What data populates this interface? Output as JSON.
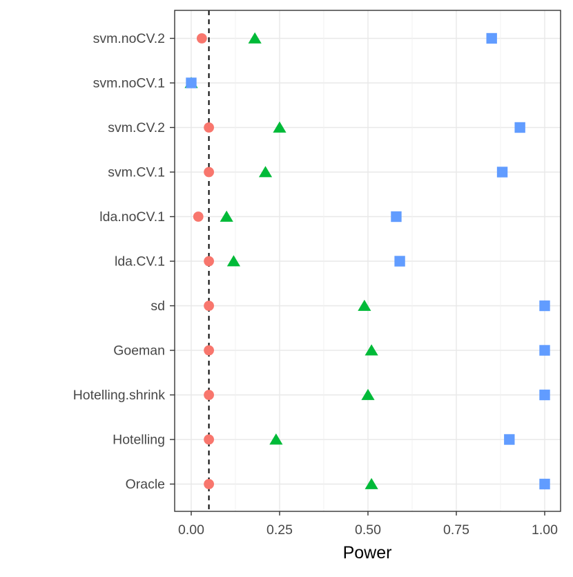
{
  "chart_data": {
    "type": "scatter",
    "subtype": "horizontal-dot-plot",
    "title": "",
    "xlabel": "Power",
    "ylabel": "",
    "xlim": [
      -0.047,
      1.045
    ],
    "x_ticks": [
      0.0,
      0.25,
      0.5,
      0.75,
      1.0
    ],
    "x_tick_labels": [
      "0.00",
      "0.25",
      "0.50",
      "0.75",
      "1.00"
    ],
    "x_minor_ticks": [
      0.125,
      0.375,
      0.625,
      0.875
    ],
    "categories_top_to_bottom": [
      "svm.noCV.2",
      "svm.noCV.1",
      "svm.CV.2",
      "svm.CV.1",
      "lda.noCV.1",
      "lda.CV.1",
      "sd",
      "Goeman",
      "Hotelling.shrink",
      "Hotelling",
      "Oracle"
    ],
    "grid": true,
    "legend": false,
    "reference_line": {
      "x": 0.05,
      "style": "dashed",
      "color": "#000000"
    },
    "series": [
      {
        "name": "triangle-series",
        "marker": "triangle",
        "color": "#00BA38",
        "values": [
          0.18,
          0.0,
          0.25,
          0.21,
          0.1,
          0.12,
          0.49,
          0.51,
          0.5,
          0.24,
          0.51
        ]
      },
      {
        "name": "square-series",
        "marker": "square",
        "color": "#619CFF",
        "values": [
          0.85,
          0.0,
          0.93,
          0.88,
          0.58,
          0.59,
          1.0,
          1.0,
          1.0,
          0.9,
          1.0
        ]
      },
      {
        "name": "circle-series",
        "marker": "circle",
        "color": "#F8766D",
        "values": [
          0.03,
          null,
          0.05,
          0.05,
          0.02,
          0.05,
          0.05,
          0.05,
          0.05,
          0.05,
          0.05
        ]
      }
    ],
    "colors": {
      "background": "#FFFFFF",
      "panel_border": "#333333",
      "grid_major": "#E8E8E8",
      "grid_minor": "#F0F0F0",
      "axis_text": "#474747",
      "axis_title": "#000000",
      "tick_mark": "#333333"
    }
  }
}
